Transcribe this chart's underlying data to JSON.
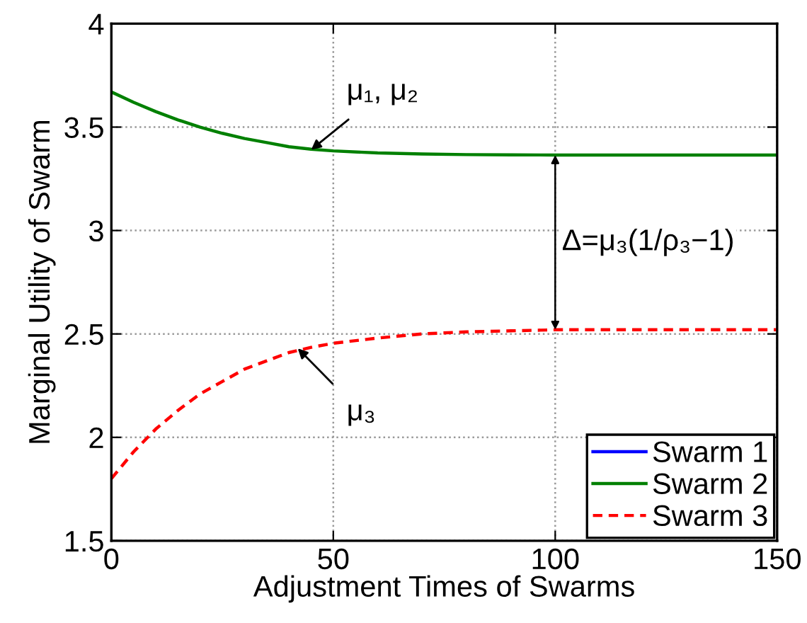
{
  "chart_data": {
    "type": "line",
    "xlabel": "Adjustment Times of Swarms",
    "ylabel": "Marginal Utility of Swarm",
    "x": [
      0,
      5,
      10,
      15,
      20,
      25,
      30,
      35,
      40,
      45,
      50,
      60,
      70,
      80,
      90,
      100,
      125,
      150
    ],
    "series": [
      {
        "name": "Swarm 1",
        "color": "#0000ff",
        "line_style": "solid",
        "values": [
          null,
          null,
          null,
          null,
          null,
          null,
          null,
          null,
          null,
          null,
          null,
          null,
          null,
          null,
          null,
          null,
          null,
          null
        ]
      },
      {
        "name": "Swarm 2",
        "color": "#008000",
        "line_style": "solid",
        "values": [
          3.67,
          3.62,
          3.575,
          3.535,
          3.5,
          3.47,
          3.445,
          3.425,
          3.405,
          3.393,
          3.385,
          3.375,
          3.37,
          3.367,
          3.366,
          3.365,
          3.365,
          3.365
        ]
      },
      {
        "name": "Swarm 3",
        "color": "#ff0000",
        "line_style": "dashed",
        "values": [
          1.8,
          1.93,
          2.04,
          2.13,
          2.21,
          2.27,
          2.33,
          2.37,
          2.41,
          2.435,
          2.455,
          2.48,
          2.5,
          2.51,
          2.515,
          2.52,
          2.52,
          2.52
        ]
      }
    ],
    "xlim": [
      0,
      150
    ],
    "xticks": [
      0,
      50,
      100,
      150
    ],
    "ylim": [
      1.5,
      4
    ],
    "yticks": [
      1.5,
      2,
      2.5,
      3,
      3.5,
      4
    ],
    "grid": true,
    "legend": "bottom right",
    "annotations": [
      {
        "text": "μ₁, μ₂",
        "x": 45,
        "y": 3.39
      },
      {
        "text": "μ₃",
        "x": 42,
        "y": 2.43
      },
      {
        "text": "Δ=μ₃(1/ρ₃−1)",
        "x": 100,
        "y": 2.52
      }
    ]
  }
}
